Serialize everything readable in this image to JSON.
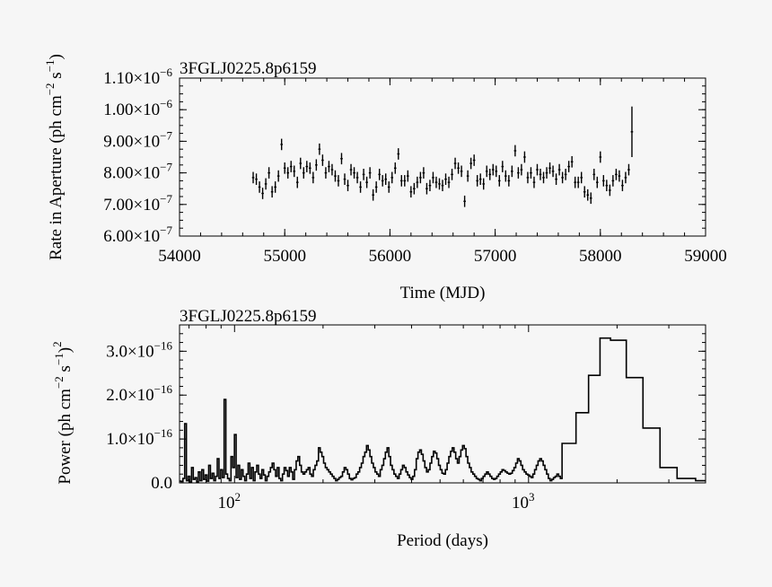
{
  "chart_data": [
    {
      "type": "scatter",
      "title": "3FGLJ0225.8p6159",
      "xlabel": "Time (MJD)",
      "ylabel_parts": {
        "base": "Rate in Aperture (ph cm",
        "exp1": "−2",
        "mid": " s",
        "exp2": "−1",
        "end": ")"
      },
      "xlim": [
        54000,
        59000
      ],
      "ylim": [
        6e-07,
        1.1e-06
      ],
      "xticks": [
        54000,
        55000,
        56000,
        57000,
        58000,
        59000
      ],
      "xtick_labels": [
        "54000",
        "55000",
        "56000",
        "57000",
        "58000",
        "59000"
      ],
      "yticks": [
        {
          "value": 6e-07,
          "mant": "6.00×10",
          "exp": "−7"
        },
        {
          "value": 7e-07,
          "mant": "7.00×10",
          "exp": "−7"
        },
        {
          "value": 8e-07,
          "mant": "8.00×10",
          "exp": "−7"
        },
        {
          "value": 9e-07,
          "mant": "9.00×10",
          "exp": "−7"
        },
        {
          "value": 1e-06,
          "mant": "1.00×10",
          "exp": "−6"
        },
        {
          "value": 1.1e-06,
          "mant": "1.10×10",
          "exp": "−6"
        }
      ],
      "x_start": 54700,
      "x_step": 30,
      "err_frac": 0.018,
      "y": [
        7.85,
        7.8,
        7.55,
        7.35,
        7.65,
        8.0,
        7.4,
        7.55,
        7.9,
        8.9,
        8.15,
        8.0,
        8.2,
        8.05,
        7.7,
        8.3,
        8.0,
        8.2,
        8.15,
        7.85,
        8.25,
        8.75,
        8.4,
        8.0,
        8.2,
        8.1,
        7.9,
        7.75,
        8.45,
        7.8,
        7.6,
        8.1,
        8.0,
        7.85,
        7.55,
        7.95,
        7.7,
        8.0,
        7.3,
        7.55,
        7.95,
        7.75,
        7.8,
        7.55,
        7.85,
        8.15,
        8.6,
        7.75,
        7.75,
        7.9,
        7.4,
        7.5,
        7.7,
        7.85,
        8.0,
        7.5,
        7.6,
        7.85,
        7.7,
        7.65,
        7.6,
        7.8,
        7.7,
        7.95,
        8.3,
        8.15,
        8.05,
        7.1,
        7.9,
        8.3,
        8.4,
        7.75,
        7.8,
        7.65,
        8.05,
        7.95,
        8.1,
        8.05,
        7.75,
        8.2,
        7.9,
        7.75,
        8.05,
        8.7,
        8.0,
        8.1,
        8.5,
        7.85,
        8.0,
        7.7,
        8.1,
        7.95,
        7.85,
        8.0,
        8.15,
        8.05,
        7.8,
        8.1,
        7.85,
        7.95,
        8.2,
        8.35,
        7.7,
        7.7,
        7.85,
        7.4,
        7.3,
        7.2,
        7.95,
        7.7,
        8.5,
        7.75,
        7.6,
        7.45,
        7.75,
        7.95,
        7.9,
        7.6,
        7.85,
        8.1,
        9.3
      ],
      "last_point_err": 0.8
    },
    {
      "type": "line",
      "title": "3FGLJ0225.8p6159",
      "xlabel": "Period (days)",
      "ylabel_parts": {
        "base": "Power (ph cm",
        "exp1": "−2",
        "mid": " s",
        "exp2": "−1",
        "end": ")",
        "exp3": "2"
      },
      "xscale": "log",
      "xlim": [
        65,
        4000
      ],
      "ylim": [
        0,
        3.6e-16
      ],
      "xticks_major": [
        {
          "value": 100,
          "base": "10",
          "exp": "2"
        },
        {
          "value": 1000,
          "base": "10",
          "exp": "3"
        }
      ],
      "yticks": [
        {
          "value": 0,
          "mant": "0.0",
          "exp": ""
        },
        {
          "value": 1e-16,
          "mant": "1.0×10",
          "exp": "−16"
        },
        {
          "value": 2e-16,
          "mant": "2.0×10",
          "exp": "−16"
        },
        {
          "value": 3e-16,
          "mant": "3.0×10",
          "exp": "−16"
        }
      ],
      "power_unit": 1e-16,
      "period_start": 65,
      "freq_bins": [
        0.04,
        0.03,
        0.1,
        1.35,
        0.05,
        0.15,
        0.02,
        0.35,
        0.08,
        0.12,
        0.02,
        0.25,
        0.05,
        0.3,
        0.08,
        0.18,
        0.04,
        0.4,
        0.1,
        0.22,
        0.05,
        0.15,
        0.55,
        0.1,
        0.3,
        0.12,
        1.9,
        0.2,
        0.1,
        0.05,
        0.6,
        0.35,
        1.1,
        0.12,
        0.4,
        0.08,
        0.3,
        0.15,
        0.05,
        0.2,
        0.45,
        0.1,
        0.35,
        0.05,
        0.25,
        0.4,
        0.2,
        0.1,
        0.3,
        0.18,
        0.05,
        0.15,
        0.25,
        0.35,
        0.45,
        0.3,
        0.15,
        0.35,
        0.1,
        0.05,
        0.2,
        0.35,
        0.28,
        0.15,
        0.35,
        0.25,
        0.08,
        0.3,
        0.5,
        0.6,
        0.4,
        0.25,
        0.2,
        0.25,
        0.3,
        0.35,
        0.2,
        0.15,
        0.3,
        0.4,
        0.5,
        0.8,
        0.7,
        0.6,
        0.45,
        0.35,
        0.3,
        0.25,
        0.2,
        0.15,
        0.1,
        0.05,
        0.08,
        0.12,
        0.15,
        0.25,
        0.35,
        0.3,
        0.2,
        0.1,
        0.07,
        0.1,
        0.12,
        0.2,
        0.25,
        0.35,
        0.45,
        0.6,
        0.7,
        0.85,
        0.75,
        0.6,
        0.45,
        0.35,
        0.25,
        0.2,
        0.15,
        0.3,
        0.4,
        0.55,
        0.7,
        0.8,
        0.6,
        0.4,
        0.3,
        0.2,
        0.15,
        0.1,
        0.2,
        0.3,
        0.4,
        0.35,
        0.25,
        0.18,
        0.12,
        0.08,
        0.15,
        0.3,
        0.55,
        0.7,
        0.75,
        0.65,
        0.5,
        0.35,
        0.25,
        0.3,
        0.45,
        0.6,
        0.72,
        0.68,
        0.55,
        0.4,
        0.3,
        0.22,
        0.2,
        0.3,
        0.45,
        0.6,
        0.72,
        0.8,
        0.7,
        0.55,
        0.45,
        0.6,
        0.75,
        0.85,
        0.78,
        0.6,
        0.45,
        0.35,
        0.25,
        0.2,
        0.15,
        0.1,
        0.08,
        0.05,
        0.1,
        0.15,
        0.2,
        0.25,
        0.2,
        0.15,
        0.1,
        0.08,
        0.1,
        0.15,
        0.2,
        0.25,
        0.3,
        0.28,
        0.25,
        0.22,
        0.2,
        0.22,
        0.28,
        0.35,
        0.45,
        0.55,
        0.5,
        0.4,
        0.3,
        0.25,
        0.2,
        0.18,
        0.15,
        0.12,
        0.2,
        0.3,
        0.4,
        0.5,
        0.55,
        0.5,
        0.4,
        0.3,
        0.2,
        0.1,
        0.05,
        0.08,
        0.12,
        0.15,
        0.2,
        0.15,
        0.1
      ],
      "bin_periods": [
        1300,
        1450,
        1600,
        1750,
        1900,
        2150,
        2450,
        2800,
        3200,
        3700
      ],
      "bin_values": [
        0.9,
        1.6,
        2.45,
        3.3,
        3.25,
        2.4,
        1.25,
        0.35,
        0.1,
        0.05
      ]
    }
  ]
}
